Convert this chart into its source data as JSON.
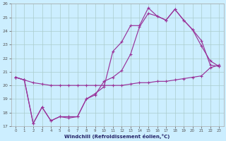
{
  "xlabel": "Windchill (Refroidissement éolien,°C)",
  "bg_color": "#cceeff",
  "grid_color": "#aacccc",
  "line_color": "#993399",
  "xlim": [
    -0.5,
    23.5
  ],
  "ylim": [
    17,
    26
  ],
  "xticks": [
    0,
    1,
    2,
    3,
    4,
    5,
    6,
    7,
    8,
    9,
    10,
    11,
    12,
    13,
    14,
    15,
    16,
    17,
    18,
    19,
    20,
    21,
    22,
    23
  ],
  "yticks": [
    17,
    18,
    19,
    20,
    21,
    22,
    23,
    24,
    25,
    26
  ],
  "line1_x": [
    0,
    1,
    2,
    3,
    4,
    5,
    6,
    7,
    8,
    9,
    10,
    11,
    12,
    13,
    14,
    15,
    16,
    17,
    18,
    19,
    20,
    21,
    22,
    23
  ],
  "line1_y": [
    20.6,
    20.4,
    20.2,
    20.1,
    20.0,
    20.0,
    20.0,
    20.0,
    20.0,
    20.0,
    20.0,
    20.0,
    20.0,
    20.1,
    20.2,
    20.2,
    20.3,
    20.3,
    20.4,
    20.5,
    20.6,
    20.7,
    21.3,
    21.5
  ],
  "line2_x": [
    0,
    1,
    2,
    3,
    4,
    5,
    6,
    7,
    8,
    9,
    10,
    11,
    12,
    13,
    14,
    15,
    16,
    17,
    18,
    19,
    20,
    21,
    22,
    23
  ],
  "line2_y": [
    20.6,
    20.4,
    17.2,
    18.4,
    17.4,
    17.7,
    17.7,
    17.7,
    19.0,
    19.4,
    19.9,
    22.5,
    23.2,
    24.4,
    24.4,
    25.7,
    25.1,
    24.8,
    25.6,
    24.8,
    24.1,
    22.9,
    21.8,
    21.4
  ],
  "line3_x": [
    0,
    1,
    2,
    3,
    4,
    5,
    6,
    7,
    8,
    9,
    10,
    11,
    12,
    13,
    14,
    15,
    16,
    17,
    18,
    19,
    20,
    21,
    22,
    23
  ],
  "line3_y": [
    20.6,
    20.4,
    17.2,
    18.4,
    17.4,
    17.7,
    17.6,
    17.7,
    19.0,
    19.3,
    20.3,
    20.6,
    21.1,
    22.3,
    24.3,
    25.3,
    25.1,
    24.8,
    25.6,
    24.8,
    24.1,
    23.3,
    21.5,
    21.4
  ]
}
